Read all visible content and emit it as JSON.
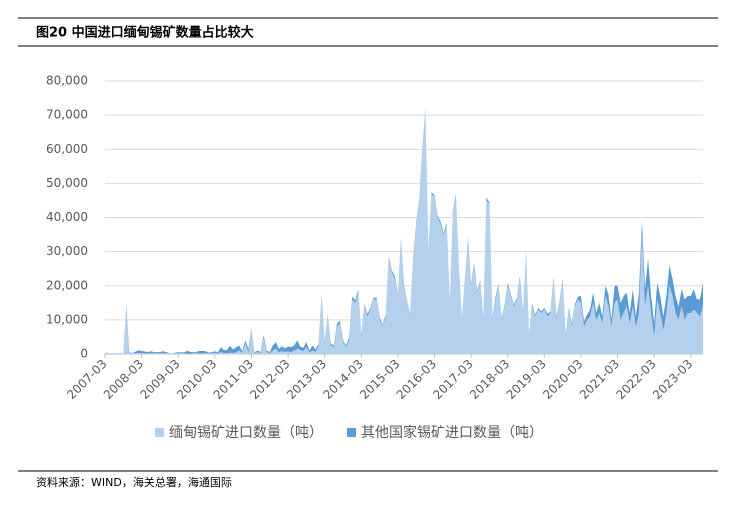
{
  "chart_data": {
    "type": "stacked-area",
    "title": "图20 中国进口缅甸锡矿数量占比较大",
    "source": "资料来源：WIND，海关总署，海通国际",
    "categories": [
      "2007-03",
      null,
      null,
      null,
      null,
      null,
      null,
      null,
      null,
      null,
      null,
      null,
      "2008-03",
      null,
      null,
      null,
      null,
      null,
      null,
      null,
      null,
      null,
      null,
      null,
      "2009-03",
      null,
      null,
      null,
      null,
      null,
      null,
      null,
      null,
      null,
      null,
      null,
      "2010-03",
      null,
      null,
      null,
      null,
      null,
      null,
      null,
      null,
      null,
      null,
      null,
      "2011-03",
      null,
      null,
      null,
      null,
      null,
      null,
      null,
      null,
      null,
      null,
      null,
      "2012-03",
      null,
      null,
      null,
      null,
      null,
      null,
      null,
      null,
      null,
      null,
      null,
      "2013-03",
      null,
      null,
      null,
      null,
      null,
      null,
      null,
      null,
      null,
      null,
      null,
      "2014-03",
      null,
      null,
      null,
      null,
      null,
      null,
      null,
      null,
      null,
      null,
      null,
      "2015-03",
      null,
      null,
      null,
      null,
      null,
      null,
      null,
      null,
      null,
      null,
      null,
      "2016-03",
      null,
      null,
      null,
      null,
      null,
      null,
      null,
      null,
      null,
      null,
      null,
      "2017-03",
      null,
      null,
      null,
      null,
      null,
      null,
      null,
      null,
      null,
      null,
      null,
      "2018-03",
      null,
      null,
      null,
      null,
      null,
      null,
      null,
      null,
      null,
      null,
      null,
      "2019-03",
      null,
      null,
      null,
      null,
      null,
      null,
      null,
      null,
      null,
      null,
      null,
      "2020-03",
      null,
      null,
      null,
      null,
      null,
      null,
      null,
      null,
      null,
      null,
      null,
      "2021-03",
      null,
      null,
      null,
      null,
      null,
      null,
      null,
      null,
      null,
      null,
      null,
      "2022-03",
      null,
      null,
      null,
      null,
      null,
      null,
      null,
      null,
      null,
      null,
      null,
      "2023-03",
      null,
      null,
      null,
      null
    ],
    "series": [
      {
        "name": "缅甸锡矿进口数量（吨）",
        "color": "#b4d0ec",
        "values": [
          500,
          300,
          200,
          300,
          200,
          300,
          200,
          15000,
          300,
          300,
          200,
          300,
          300,
          200,
          200,
          300,
          300,
          200,
          200,
          300,
          200,
          300,
          100,
          200,
          200,
          300,
          200,
          100,
          100,
          200,
          300,
          100,
          200,
          300,
          200,
          200,
          300,
          200,
          500,
          300,
          200,
          400,
          300,
          500,
          1000,
          300,
          3000,
          500,
          7000,
          300,
          500,
          300,
          4500,
          500,
          300,
          1000,
          1500,
          500,
          800,
          600,
          700,
          500,
          1000,
          1500,
          1200,
          800,
          2000,
          500,
          1000,
          600,
          2500,
          17000,
          3000,
          11000,
          2500,
          2000,
          8000,
          9000,
          3500,
          2000,
          4000,
          16000,
          15000,
          18000,
          5000,
          14000,
          11000,
          13000,
          16000,
          16000,
          10000,
          8000,
          11000,
          28000,
          24000,
          22000,
          17000,
          33000,
          20000,
          15000,
          11000,
          27000,
          38000,
          45000,
          60000,
          71000,
          30000,
          47000,
          46000,
          40000,
          38000,
          35000,
          38000,
          15000,
          41000,
          46000,
          25000,
          10000,
          22000,
          34000,
          20000,
          26000,
          18000,
          21000,
          10000,
          45000,
          44000,
          10000,
          16000,
          20000,
          10000,
          14000,
          20000,
          17000,
          14000,
          16000,
          22000,
          12000,
          30000,
          5000,
          14000,
          11000,
          13000,
          12000,
          13000,
          11000,
          12000,
          22000,
          10000,
          15000,
          21000,
          5000,
          13000,
          8000,
          14000,
          16000,
          15000,
          8000,
          10000,
          11000,
          15000,
          10000,
          12000,
          9000,
          17000,
          14000,
          8000,
          15000,
          16000,
          10000,
          12000,
          14000,
          9000,
          14000,
          8000,
          12000,
          35000,
          14000,
          20000,
          12000,
          5000,
          16000,
          12000,
          7000,
          12000,
          20000,
          17000,
          12000,
          10000,
          14000,
          10000,
          12000,
          12000,
          13000,
          12000,
          11000,
          14000
        ]
      },
      {
        "name": "其他国家锡矿进口数量（吨）",
        "color": "#5b9bd5",
        "values": [
          0,
          0,
          0,
          0,
          0,
          0,
          0,
          0,
          200,
          0,
          500,
          800,
          600,
          500,
          400,
          500,
          300,
          300,
          400,
          500,
          400,
          0,
          0,
          200,
          300,
          200,
          300,
          800,
          500,
          300,
          300,
          800,
          700,
          500,
          200,
          300,
          500,
          300,
          1500,
          800,
          1000,
          2000,
          1000,
          1500,
          1500,
          500,
          1000,
          1000,
          500,
          200,
          500,
          300,
          1000,
          500,
          300,
          1500,
          2000,
          1000,
          1500,
          1000,
          1500,
          1500,
          1500,
          2500,
          1000,
          1000,
          1500,
          500,
          1500,
          800,
          500,
          500,
          500,
          500,
          500,
          500,
          800,
          800,
          500,
          500,
          800,
          800,
          800,
          800,
          500,
          500,
          800,
          500,
          500,
          500,
          800,
          500,
          500,
          500,
          500,
          800,
          500,
          800,
          500,
          500,
          500,
          800,
          500,
          500,
          500,
          800,
          500,
          500,
          500,
          500,
          800,
          500,
          500,
          500,
          500,
          800,
          500,
          500,
          500,
          500,
          500,
          800,
          500,
          500,
          500,
          800,
          500,
          500,
          800,
          500,
          500,
          500,
          800,
          500,
          500,
          500,
          800,
          500,
          500,
          500,
          800,
          500,
          500,
          500,
          500,
          800,
          500,
          500,
          800,
          500,
          800,
          500,
          500,
          800,
          500,
          800,
          2000,
          1500,
          1500,
          2000,
          3000,
          2000,
          3000,
          2000,
          3000,
          3500,
          2000,
          5000,
          4000,
          5000,
          5000,
          4000,
          3000,
          5000,
          3000,
          6000,
          4000,
          5000,
          8000,
          5000,
          4000,
          5000,
          5000,
          4000,
          5000,
          6000,
          5000,
          5000,
          4000,
          5000,
          6000,
          5000,
          5000,
          6000,
          4000,
          5000,
          7000
        ]
      }
    ],
    "ylim": [
      0,
      80000
    ],
    "yticks": [
      0,
      {
        "value": 10000,
        "label": "10,000"
      },
      {
        "value": 20000,
        "label": "20,000"
      },
      {
        "value": 30000,
        "label": "30,000"
      },
      {
        "value": 40000,
        "label": "40,000"
      },
      {
        "value": 50000,
        "label": "50,000"
      },
      {
        "value": 60000,
        "label": "60,000"
      },
      {
        "value": 70000,
        "label": "70,000"
      },
      {
        "value": 80000,
        "label": "80,000"
      }
    ],
    "grid": true
  }
}
